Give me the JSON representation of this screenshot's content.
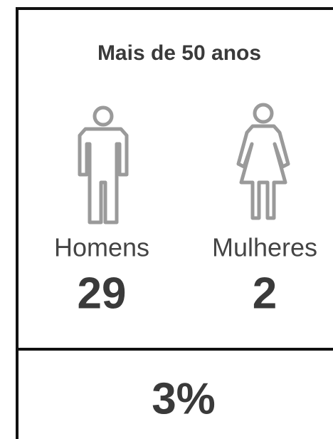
{
  "title": "Mais de 50 anos",
  "groups": [
    {
      "label": "Homens",
      "value": "29"
    },
    {
      "label": "Mulheres",
      "value": "2"
    }
  ],
  "share": "3%"
}
